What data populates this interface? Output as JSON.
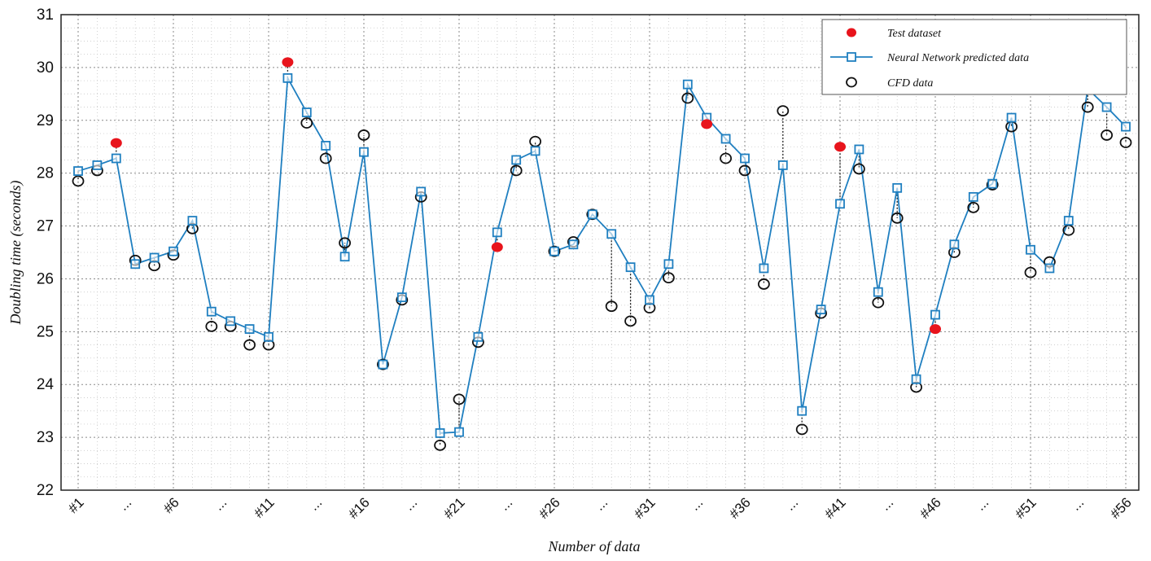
{
  "chart_data": {
    "type": "line",
    "title": "",
    "xlabel": "Number of data",
    "ylabel": "Doubling time (seconds)",
    "ylim": [
      22,
      31
    ],
    "y_ticks": [
      "22",
      "23",
      "24",
      "25",
      "26",
      "27",
      "28",
      "29",
      "30",
      "31"
    ],
    "x_tick_labels": [
      "#1",
      "...",
      "#6",
      "...",
      "#11",
      "...",
      "#16",
      "...",
      "#21",
      "...",
      "#26",
      "...",
      "#31",
      "...",
      "#36",
      "...",
      "#41",
      "...",
      "#46",
      "...",
      "#51",
      "...",
      "#56"
    ],
    "grid": true,
    "legend_position": "top-right",
    "x": [
      1,
      2,
      3,
      4,
      5,
      6,
      7,
      8,
      9,
      10,
      11,
      12,
      13,
      14,
      15,
      16,
      17,
      18,
      19,
      20,
      21,
      22,
      23,
      24,
      25,
      26,
      27,
      28,
      29,
      30,
      31,
      32,
      33,
      34,
      35,
      36,
      37,
      38,
      39,
      40,
      41,
      42,
      43,
      44,
      45,
      46,
      47,
      48,
      49,
      50,
      51,
      52,
      53,
      54,
      55,
      56
    ],
    "series": [
      {
        "name": "Test dataset",
        "color": "#e8141c",
        "marker": "filled-circle",
        "points": [
          [
            3,
            28.57
          ],
          [
            12,
            30.1
          ],
          [
            23,
            26.6
          ],
          [
            34,
            28.93
          ],
          [
            41,
            28.5
          ],
          [
            46,
            25.05
          ]
        ]
      },
      {
        "name": "Neural Network predicted data",
        "color": "#1f7fc0",
        "marker": "square",
        "values": [
          28.04,
          28.15,
          28.28,
          26.28,
          26.4,
          26.52,
          27.1,
          25.38,
          25.2,
          25.05,
          24.9,
          29.8,
          29.15,
          28.52,
          26.42,
          28.4,
          24.38,
          25.65,
          27.65,
          23.08,
          23.1,
          24.9,
          26.88,
          28.25,
          28.42,
          26.52,
          26.65,
          27.22,
          26.85,
          26.22,
          25.6,
          26.28,
          29.68,
          29.05,
          28.65,
          28.28,
          26.2,
          28.15,
          23.5,
          25.42,
          27.42,
          28.45,
          25.75,
          27.72,
          24.1,
          25.32,
          26.65,
          27.55,
          27.8,
          29.05,
          26.55,
          26.2,
          27.1,
          29.6,
          29.25,
          28.88
        ]
      },
      {
        "name": "CFD data",
        "color": "#111111",
        "marker": "open-circle",
        "values": [
          27.85,
          28.05,
          null,
          26.35,
          26.25,
          26.45,
          26.95,
          25.1,
          25.1,
          24.75,
          24.75,
          null,
          28.95,
          28.28,
          26.68,
          28.72,
          24.38,
          25.6,
          27.55,
          22.85,
          23.72,
          24.8,
          null,
          28.05,
          28.6,
          26.52,
          26.7,
          27.22,
          25.48,
          25.2,
          25.45,
          26.02,
          29.42,
          null,
          28.28,
          28.05,
          25.9,
          29.18,
          23.15,
          25.35,
          null,
          28.08,
          25.55,
          27.15,
          23.95,
          null,
          26.5,
          27.35,
          27.78,
          28.88,
          26.12,
          26.32,
          26.92,
          29.25,
          28.72,
          28.58
        ]
      }
    ]
  }
}
